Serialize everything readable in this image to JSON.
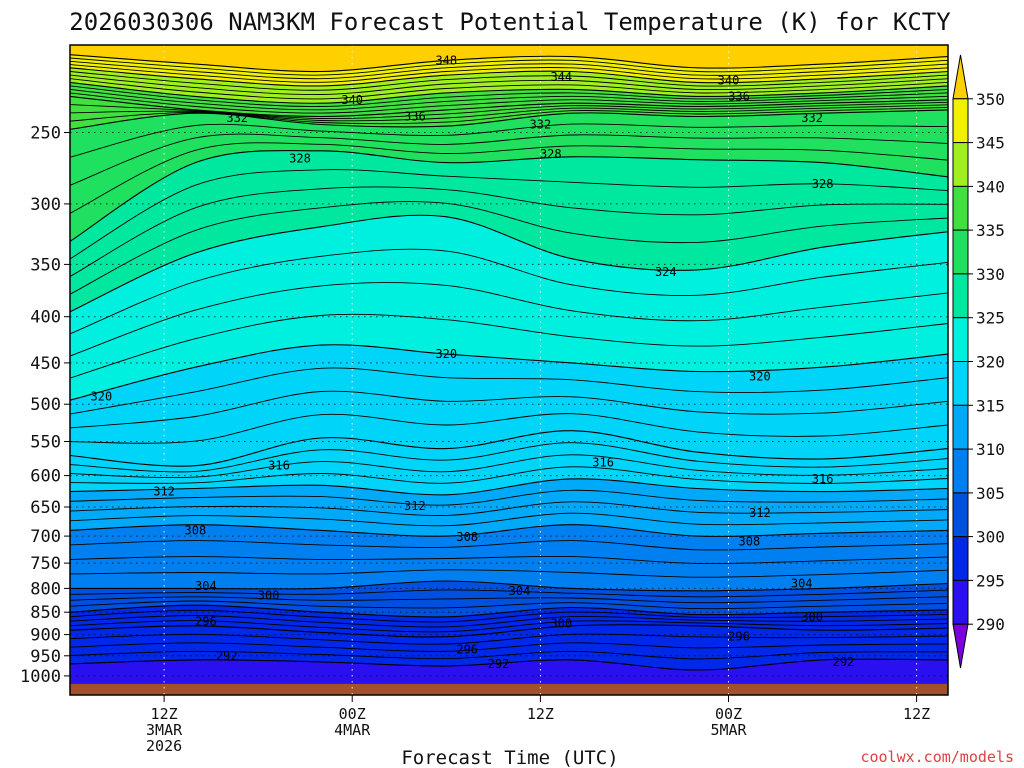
{
  "chart_data": {
    "type": "heatmap",
    "title": "2026030306 NAM3KM Forecast Potential Temperature (K) for KCTY",
    "xlabel": "Forecast Time (UTC)",
    "ylabel": "",
    "credit": "coolwx.com/models",
    "y_axis": {
      "unit": "hPa",
      "scale": "log",
      "range": [
        200,
        1050
      ],
      "ticks": [
        250,
        300,
        350,
        400,
        450,
        500,
        550,
        600,
        650,
        700,
        750,
        800,
        850,
        900,
        950,
        1000
      ]
    },
    "x_axis": {
      "range_hours": [
        0,
        84
      ],
      "ticks": [
        {
          "hour": 9,
          "line1": "12Z",
          "line2": "3MAR",
          "line3": "2026"
        },
        {
          "hour": 27,
          "line1": "00Z",
          "line2": "4MAR",
          "line3": ""
        },
        {
          "hour": 45,
          "line1": "12Z",
          "line2": "",
          "line3": ""
        },
        {
          "hour": 63,
          "line1": "00Z",
          "line2": "5MAR",
          "line3": ""
        },
        {
          "hour": 81,
          "line1": "12Z",
          "line2": "",
          "line3": ""
        }
      ]
    },
    "colorbar": {
      "ticks": [
        350,
        345,
        340,
        335,
        330,
        325,
        320,
        315,
        310,
        305,
        300,
        295,
        290
      ],
      "levels": [
        290,
        295,
        300,
        305,
        310,
        315,
        320,
        325,
        330,
        335,
        340,
        345,
        350
      ],
      "colors": [
        "#7a00e0",
        "#2a10f0",
        "#0028e8",
        "#0050e0",
        "#0080f0",
        "#00aaf8",
        "#00d4f8",
        "#00f0e0",
        "#00e8a0",
        "#20e060",
        "#40e040",
        "#a0f020",
        "#f0f000",
        "#ffd000"
      ]
    },
    "isentropes": [
      {
        "theta": 348,
        "pressures": [
          205,
          210,
          214,
          208,
          206,
          212,
          210,
          206
        ]
      },
      {
        "theta": 344,
        "pressures": [
          212,
          218,
          222,
          216,
          214,
          220,
          218,
          214
        ]
      },
      {
        "theta": 340,
        "pressures": [
          220,
          228,
          232,
          226,
          224,
          228,
          226,
          222
        ]
      },
      {
        "theta": 336,
        "pressures": [
          228,
          236,
          240,
          236,
          232,
          234,
          232,
          230
        ]
      },
      {
        "theta": 332,
        "pressures": [
          248,
          238,
          245,
          246,
          238,
          240,
          238,
          236
        ]
      },
      {
        "theta": 328,
        "pressures": [
          330,
          270,
          262,
          270,
          266,
          268,
          270,
          280
        ]
      },
      {
        "theta": 324,
        "pressures": [
          395,
          340,
          318,
          310,
          345,
          355,
          335,
          322
        ]
      },
      {
        "theta": 320,
        "pressures": [
          495,
          455,
          430,
          440,
          450,
          460,
          455,
          440
        ]
      },
      {
        "theta": 316,
        "pressures": [
          570,
          585,
          545,
          560,
          535,
          565,
          575,
          560
        ]
      },
      {
        "theta": 312,
        "pressures": [
          625,
          620,
          615,
          630,
          605,
          620,
          625,
          620
        ]
      },
      {
        "theta": 308,
        "pressures": [
          690,
          680,
          690,
          700,
          680,
          700,
          695,
          690
        ]
      },
      {
        "theta": 304,
        "pressures": [
          800,
          800,
          800,
          785,
          800,
          805,
          800,
          790
        ]
      },
      {
        "theta": 300,
        "pressures": [
          850,
          835,
          850,
          860,
          840,
          855,
          850,
          845
        ]
      },
      {
        "theta": 296,
        "pressures": [
          890,
          880,
          895,
          905,
          880,
          880,
          890,
          885
        ]
      },
      {
        "theta": 292,
        "pressures": [
          970,
          960,
          965,
          975,
          960,
          985,
          960,
          960
        ]
      }
    ],
    "contour_labels": [
      {
        "text": "348",
        "hour": 36,
        "p": 208
      },
      {
        "text": "344",
        "hour": 47,
        "p": 217
      },
      {
        "text": "340",
        "hour": 63,
        "p": 219
      },
      {
        "text": "336",
        "hour": 64,
        "p": 228
      },
      {
        "text": "340",
        "hour": 27,
        "p": 230
      },
      {
        "text": "336",
        "hour": 33,
        "p": 240
      },
      {
        "text": "332",
        "hour": 16,
        "p": 241
      },
      {
        "text": "332",
        "hour": 45,
        "p": 245
      },
      {
        "text": "332",
        "hour": 71,
        "p": 241
      },
      {
        "text": "328",
        "hour": 22,
        "p": 267
      },
      {
        "text": "328",
        "hour": 46,
        "p": 264
      },
      {
        "text": "328",
        "hour": 72,
        "p": 285
      },
      {
        "text": "324",
        "hour": 57,
        "p": 357
      },
      {
        "text": "320",
        "hour": 36,
        "p": 440
      },
      {
        "text": "320",
        "hour": 66,
        "p": 466
      },
      {
        "text": "320",
        "hour": 3,
        "p": 490
      },
      {
        "text": "316",
        "hour": 20,
        "p": 585
      },
      {
        "text": "316",
        "hour": 51,
        "p": 580
      },
      {
        "text": "316",
        "hour": 72,
        "p": 605
      },
      {
        "text": "312",
        "hour": 9,
        "p": 625
      },
      {
        "text": "312",
        "hour": 33,
        "p": 648
      },
      {
        "text": "312",
        "hour": 66,
        "p": 660
      },
      {
        "text": "308",
        "hour": 12,
        "p": 690
      },
      {
        "text": "308",
        "hour": 38,
        "p": 702
      },
      {
        "text": "308",
        "hour": 65,
        "p": 710
      },
      {
        "text": "304",
        "hour": 13,
        "p": 795
      },
      {
        "text": "300",
        "hour": 19,
        "p": 815
      },
      {
        "text": "304",
        "hour": 43,
        "p": 805
      },
      {
        "text": "304",
        "hour": 70,
        "p": 790
      },
      {
        "text": "300",
        "hour": 47,
        "p": 875
      },
      {
        "text": "300",
        "hour": 71,
        "p": 860
      },
      {
        "text": "296",
        "hour": 13,
        "p": 870
      },
      {
        "text": "296",
        "hour": 38,
        "p": 935
      },
      {
        "text": "296",
        "hour": 64,
        "p": 905
      },
      {
        "text": "292",
        "hour": 15,
        "p": 950
      },
      {
        "text": "292",
        "hour": 41,
        "p": 970
      },
      {
        "text": "292",
        "hour": 74,
        "p": 965
      }
    ]
  }
}
